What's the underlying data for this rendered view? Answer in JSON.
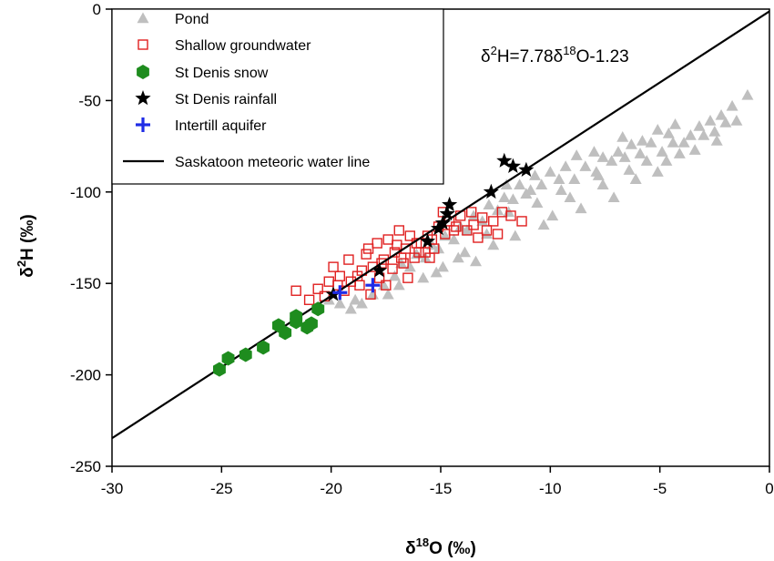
{
  "chart_data": {
    "type": "scatter",
    "xlabel_main": "δ",
    "xlabel_sup": "18",
    "xlabel_rest": "O (‰)",
    "ylabel_main": "δ",
    "ylabel_sup": "2",
    "ylabel_rest": "H (‰)",
    "xlim": [
      -30,
      0
    ],
    "ylim": [
      -250,
      0
    ],
    "xticks": [
      -30,
      -25,
      -20,
      -15,
      -10,
      -5,
      0
    ],
    "yticks": [
      0,
      -50,
      -100,
      -150,
      -200,
      -250
    ],
    "grid": false,
    "legend_placement": "top-left",
    "equation": {
      "p1": "δ",
      "s1": "2",
      "p2": "H=7.78δ",
      "s2": "18",
      "p3": "O-1.23"
    },
    "line": {
      "name": "Saskatoon meteoric water line",
      "slope": 7.78,
      "intercept": -1.23,
      "x_range": [
        -30,
        0
      ],
      "color": "#000000"
    },
    "series": [
      {
        "name": "Pond",
        "marker": "triangle",
        "color": "#bfbfbf",
        "points": [
          [
            -1.0,
            -47
          ],
          [
            -1.7,
            -53
          ],
          [
            -2.2,
            -58
          ],
          [
            -2.0,
            -62
          ],
          [
            -2.7,
            -61
          ],
          [
            -3.2,
            -64
          ],
          [
            -2.5,
            -67
          ],
          [
            -3.6,
            -69
          ],
          [
            -4.3,
            -63
          ],
          [
            -4.6,
            -68
          ],
          [
            -3.9,
            -73
          ],
          [
            -5.1,
            -66
          ],
          [
            -5.4,
            -73
          ],
          [
            -4.9,
            -78
          ],
          [
            -5.8,
            -72
          ],
          [
            -6.3,
            -74
          ],
          [
            -6.7,
            -70
          ],
          [
            -5.6,
            -83
          ],
          [
            -6.9,
            -78
          ],
          [
            -7.2,
            -83
          ],
          [
            -6.4,
            -88
          ],
          [
            -7.6,
            -81
          ],
          [
            -8.0,
            -78
          ],
          [
            -7.9,
            -89
          ],
          [
            -8.4,
            -86
          ],
          [
            -8.8,
            -80
          ],
          [
            -8.9,
            -93
          ],
          [
            -9.3,
            -86
          ],
          [
            -9.6,
            -93
          ],
          [
            -10.0,
            -89
          ],
          [
            -10.4,
            -96
          ],
          [
            -10.7,
            -91
          ],
          [
            -11.1,
            -101
          ],
          [
            -11.4,
            -96
          ],
          [
            -11.7,
            -104
          ],
          [
            -12.1,
            -103
          ],
          [
            -12.4,
            -110
          ],
          [
            -12.8,
            -107
          ],
          [
            -13.1,
            -116
          ],
          [
            -13.5,
            -113
          ],
          [
            -13.8,
            -121
          ],
          [
            -14.1,
            -119
          ],
          [
            -14.4,
            -126
          ],
          [
            -14.8,
            -124
          ],
          [
            -15.1,
            -131
          ],
          [
            -15.4,
            -129
          ],
          [
            -15.7,
            -136
          ],
          [
            -16.1,
            -134
          ],
          [
            -16.4,
            -141
          ],
          [
            -16.8,
            -139
          ],
          [
            -17.1,
            -146
          ],
          [
            -17.6,
            -151
          ],
          [
            -18.1,
            -156
          ],
          [
            -18.6,
            -161
          ],
          [
            -19.1,
            -164
          ],
          [
            -19.6,
            -161
          ],
          [
            -20.1,
            -159
          ],
          [
            -20.6,
            -163
          ],
          [
            -4.1,
            -79
          ],
          [
            -3.4,
            -77
          ],
          [
            -4.7,
            -83
          ],
          [
            -2.4,
            -72
          ],
          [
            -9.1,
            -103
          ],
          [
            -10.6,
            -106
          ],
          [
            -11.9,
            -111
          ],
          [
            -12.9,
            -123
          ],
          [
            -13.9,
            -133
          ],
          [
            -14.9,
            -141
          ],
          [
            -15.8,
            -147
          ],
          [
            -16.9,
            -151
          ],
          [
            -11.6,
            -124
          ],
          [
            -12.6,
            -129
          ],
          [
            -9.9,
            -113
          ],
          [
            -7.6,
            -96
          ],
          [
            -7.1,
            -103
          ],
          [
            -8.6,
            -109
          ],
          [
            -6.1,
            -93
          ],
          [
            -5.1,
            -89
          ],
          [
            -10.3,
            -118
          ],
          [
            -13.4,
            -138
          ],
          [
            -14.2,
            -136
          ],
          [
            -15.2,
            -144
          ],
          [
            -17.4,
            -156
          ],
          [
            -18.9,
            -159
          ],
          [
            -12.0,
            -96
          ],
          [
            -10.9,
            -99
          ],
          [
            -9.5,
            -99
          ],
          [
            -7.8,
            -91
          ],
          [
            -6.6,
            -81
          ],
          [
            -5.9,
            -79
          ],
          [
            -4.4,
            -73
          ],
          [
            -3.0,
            -69
          ],
          [
            -1.5,
            -61
          ]
        ]
      },
      {
        "name": "Shallow groundwater",
        "marker": "square-open",
        "color": "#e02020",
        "points": [
          [
            -21.6,
            -154
          ],
          [
            -21.0,
            -159
          ],
          [
            -20.6,
            -153
          ],
          [
            -20.1,
            -149
          ],
          [
            -19.6,
            -146
          ],
          [
            -19.1,
            -149
          ],
          [
            -18.6,
            -143
          ],
          [
            -18.1,
            -141
          ],
          [
            -17.6,
            -137
          ],
          [
            -17.1,
            -133
          ],
          [
            -16.6,
            -131
          ],
          [
            -16.1,
            -128
          ],
          [
            -15.6,
            -124
          ],
          [
            -15.1,
            -119
          ],
          [
            -14.6,
            -116
          ],
          [
            -14.1,
            -113
          ],
          [
            -13.6,
            -111
          ],
          [
            -13.1,
            -114
          ],
          [
            -12.6,
            -116
          ],
          [
            -12.2,
            -111
          ],
          [
            -11.8,
            -113
          ],
          [
            -11.3,
            -116
          ],
          [
            -19.9,
            -141
          ],
          [
            -19.2,
            -137
          ],
          [
            -18.4,
            -134
          ],
          [
            -17.9,
            -128
          ],
          [
            -17.4,
            -126
          ],
          [
            -16.9,
            -121
          ],
          [
            -16.4,
            -124
          ],
          [
            -15.9,
            -128
          ],
          [
            -15.3,
            -131
          ],
          [
            -14.8,
            -123
          ],
          [
            -14.3,
            -119
          ],
          [
            -13.8,
            -121
          ],
          [
            -13.3,
            -125
          ],
          [
            -18.7,
            -151
          ],
          [
            -17.8,
            -147
          ],
          [
            -17.2,
            -142
          ],
          [
            -16.7,
            -139
          ],
          [
            -16.2,
            -136
          ],
          [
            -15.7,
            -133
          ],
          [
            -15.4,
            -126
          ],
          [
            -20.3,
            -157
          ],
          [
            -19.4,
            -154
          ],
          [
            -18.2,
            -156
          ],
          [
            -17.5,
            -151
          ],
          [
            -16.5,
            -147
          ],
          [
            -14.9,
            -111
          ],
          [
            -14.4,
            -121
          ],
          [
            -13.5,
            -118
          ],
          [
            -12.9,
            -121
          ],
          [
            -12.4,
            -123
          ],
          [
            -19.7,
            -151
          ],
          [
            -18.8,
            -146
          ],
          [
            -17.7,
            -139
          ],
          [
            -16.8,
            -136
          ],
          [
            -16.0,
            -133
          ],
          [
            -15.5,
            -136
          ],
          [
            -18.3,
            -131
          ],
          [
            -17.0,
            -129
          ]
        ]
      },
      {
        "name": "St Denis snow",
        "marker": "hexagon",
        "color": "#1e8c1e",
        "points": [
          [
            -25.1,
            -197
          ],
          [
            -24.7,
            -191
          ],
          [
            -23.9,
            -189
          ],
          [
            -23.1,
            -185
          ],
          [
            -22.1,
            -177
          ],
          [
            -21.6,
            -171
          ],
          [
            -21.1,
            -174
          ],
          [
            -20.9,
            -172
          ],
          [
            -20.6,
            -164
          ],
          [
            -21.6,
            -168
          ],
          [
            -22.4,
            -173
          ]
        ]
      },
      {
        "name": "St Denis rainfall",
        "marker": "star",
        "color": "#000000",
        "points": [
          [
            -12.1,
            -83
          ],
          [
            -11.7,
            -86
          ],
          [
            -11.1,
            -88
          ],
          [
            -12.7,
            -100
          ],
          [
            -14.6,
            -107
          ],
          [
            -14.7,
            -112
          ],
          [
            -14.9,
            -117
          ],
          [
            -15.1,
            -120
          ],
          [
            -15.6,
            -127
          ],
          [
            -17.8,
            -143
          ],
          [
            -19.9,
            -156
          ]
        ]
      },
      {
        "name": "Intertill aquifer",
        "marker": "plus",
        "color": "#1f2ce6",
        "points": [
          [
            -19.6,
            -155
          ],
          [
            -18.1,
            -151
          ]
        ]
      }
    ]
  }
}
